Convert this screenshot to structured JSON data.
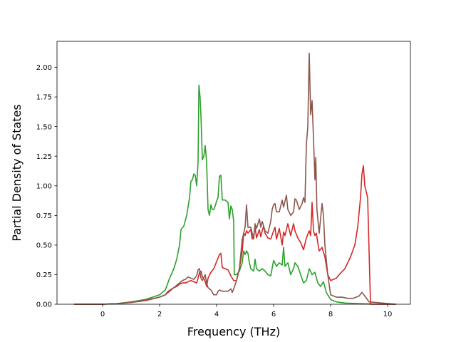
{
  "chart_data": {
    "type": "line",
    "title": "",
    "xlabel": "Frequency (THz)",
    "ylabel": "Partial Density of States",
    "xlim": [
      -1.6,
      10.8
    ],
    "ylim": [
      0.0,
      2.22
    ],
    "xticks": [
      0,
      2,
      4,
      6,
      8,
      10
    ],
    "xtick_labels": [
      "0",
      "2",
      "4",
      "6",
      "8",
      "10"
    ],
    "yticks": [
      0.0,
      0.25,
      0.5,
      0.75,
      1.0,
      1.25,
      1.5,
      1.75,
      2.0
    ],
    "ytick_labels": [
      "0.00",
      "0.25",
      "0.50",
      "0.75",
      "1.00",
      "1.25",
      "1.50",
      "1.75",
      "2.00"
    ],
    "grid": false,
    "legend": "none",
    "series": [
      {
        "color": "#2ca02c",
        "points": [
          [
            -1.0,
            0.0
          ],
          [
            0.0,
            0.0
          ],
          [
            0.5,
            0.005
          ],
          [
            1.0,
            0.02
          ],
          [
            1.5,
            0.04
          ],
          [
            2.0,
            0.08
          ],
          [
            2.2,
            0.12
          ],
          [
            2.35,
            0.22
          ],
          [
            2.5,
            0.3
          ],
          [
            2.6,
            0.38
          ],
          [
            2.7,
            0.5
          ],
          [
            2.75,
            0.63
          ],
          [
            2.85,
            0.66
          ],
          [
            2.95,
            0.75
          ],
          [
            3.05,
            0.9
          ],
          [
            3.1,
            1.04
          ],
          [
            3.15,
            1.05
          ],
          [
            3.2,
            1.1
          ],
          [
            3.25,
            1.09
          ],
          [
            3.3,
            1.0
          ],
          [
            3.35,
            1.2
          ],
          [
            3.38,
            1.85
          ],
          [
            3.42,
            1.75
          ],
          [
            3.45,
            1.6
          ],
          [
            3.5,
            1.22
          ],
          [
            3.55,
            1.25
          ],
          [
            3.6,
            1.34
          ],
          [
            3.65,
            1.2
          ],
          [
            3.7,
            0.8
          ],
          [
            3.75,
            0.75
          ],
          [
            3.8,
            0.84
          ],
          [
            3.85,
            0.8
          ],
          [
            3.9,
            0.8
          ],
          [
            3.95,
            0.83
          ],
          [
            4.0,
            0.87
          ],
          [
            4.05,
            0.9
          ],
          [
            4.1,
            1.08
          ],
          [
            4.15,
            1.09
          ],
          [
            4.2,
            0.88
          ],
          [
            4.3,
            0.88
          ],
          [
            4.4,
            0.86
          ],
          [
            4.45,
            0.72
          ],
          [
            4.5,
            0.83
          ],
          [
            4.55,
            0.8
          ],
          [
            4.6,
            0.7
          ],
          [
            4.62,
            0.25
          ],
          [
            4.7,
            0.25
          ],
          [
            4.8,
            0.28
          ],
          [
            4.9,
            0.35
          ],
          [
            4.95,
            0.45
          ],
          [
            5.0,
            0.42
          ],
          [
            5.05,
            0.45
          ],
          [
            5.1,
            0.43
          ],
          [
            5.15,
            0.35
          ],
          [
            5.2,
            0.3
          ],
          [
            5.3,
            0.28
          ],
          [
            5.35,
            0.38
          ],
          [
            5.4,
            0.3
          ],
          [
            5.5,
            0.28
          ],
          [
            5.6,
            0.3
          ],
          [
            5.7,
            0.28
          ],
          [
            5.8,
            0.25
          ],
          [
            5.9,
            0.24
          ],
          [
            6.0,
            0.37
          ],
          [
            6.1,
            0.32
          ],
          [
            6.2,
            0.35
          ],
          [
            6.3,
            0.33
          ],
          [
            6.35,
            0.48
          ],
          [
            6.4,
            0.32
          ],
          [
            6.5,
            0.35
          ],
          [
            6.6,
            0.25
          ],
          [
            6.7,
            0.3
          ],
          [
            6.75,
            0.35
          ],
          [
            6.85,
            0.32
          ],
          [
            6.95,
            0.25
          ],
          [
            7.05,
            0.18
          ],
          [
            7.15,
            0.2
          ],
          [
            7.25,
            0.3
          ],
          [
            7.35,
            0.25
          ],
          [
            7.45,
            0.27
          ],
          [
            7.55,
            0.18
          ],
          [
            7.65,
            0.15
          ],
          [
            7.75,
            0.19
          ],
          [
            7.85,
            0.1
          ],
          [
            8.0,
            0.04
          ],
          [
            8.2,
            0.02
          ],
          [
            8.5,
            0.01
          ],
          [
            9.0,
            0.005
          ],
          [
            9.5,
            0.002
          ],
          [
            10.3,
            0.0
          ]
        ]
      },
      {
        "color": "#d62728",
        "points": [
          [
            -1.0,
            0.0
          ],
          [
            0.0,
            0.0
          ],
          [
            0.5,
            0.005
          ],
          [
            1.0,
            0.015
          ],
          [
            1.5,
            0.03
          ],
          [
            2.0,
            0.06
          ],
          [
            2.2,
            0.08
          ],
          [
            2.3,
            0.1
          ],
          [
            2.5,
            0.14
          ],
          [
            2.6,
            0.15
          ],
          [
            2.7,
            0.17
          ],
          [
            2.8,
            0.18
          ],
          [
            2.9,
            0.18
          ],
          [
            3.0,
            0.19
          ],
          [
            3.1,
            0.2
          ],
          [
            3.2,
            0.19
          ],
          [
            3.3,
            0.18
          ],
          [
            3.35,
            0.22
          ],
          [
            3.4,
            0.27
          ],
          [
            3.45,
            0.28
          ],
          [
            3.5,
            0.23
          ],
          [
            3.55,
            0.22
          ],
          [
            3.6,
            0.19
          ],
          [
            3.65,
            0.15
          ],
          [
            3.7,
            0.22
          ],
          [
            3.8,
            0.27
          ],
          [
            3.9,
            0.3
          ],
          [
            4.0,
            0.36
          ],
          [
            4.1,
            0.42
          ],
          [
            4.15,
            0.43
          ],
          [
            4.2,
            0.31
          ],
          [
            4.3,
            0.3
          ],
          [
            4.4,
            0.29
          ],
          [
            4.5,
            0.24
          ],
          [
            4.6,
            0.2
          ],
          [
            4.7,
            0.2
          ],
          [
            4.8,
            0.3
          ],
          [
            4.9,
            0.45
          ],
          [
            4.95,
            0.6
          ],
          [
            5.0,
            0.58
          ],
          [
            5.05,
            0.62
          ],
          [
            5.1,
            0.6
          ],
          [
            5.2,
            0.63
          ],
          [
            5.25,
            0.55
          ],
          [
            5.3,
            0.58
          ],
          [
            5.35,
            0.65
          ],
          [
            5.4,
            0.56
          ],
          [
            5.5,
            0.63
          ],
          [
            5.55,
            0.57
          ],
          [
            5.6,
            0.62
          ],
          [
            5.65,
            0.66
          ],
          [
            5.7,
            0.6
          ],
          [
            5.8,
            0.56
          ],
          [
            5.9,
            0.55
          ],
          [
            6.0,
            0.62
          ],
          [
            6.05,
            0.65
          ],
          [
            6.1,
            0.55
          ],
          [
            6.2,
            0.64
          ],
          [
            6.3,
            0.5
          ],
          [
            6.35,
            0.61
          ],
          [
            6.4,
            0.58
          ],
          [
            6.5,
            0.68
          ],
          [
            6.6,
            0.58
          ],
          [
            6.7,
            0.68
          ],
          [
            6.75,
            0.62
          ],
          [
            6.85,
            0.56
          ],
          [
            6.95,
            0.52
          ],
          [
            7.05,
            0.46
          ],
          [
            7.15,
            0.56
          ],
          [
            7.25,
            0.62
          ],
          [
            7.3,
            0.58
          ],
          [
            7.35,
            0.86
          ],
          [
            7.4,
            0.62
          ],
          [
            7.45,
            0.58
          ],
          [
            7.5,
            0.6
          ],
          [
            7.55,
            0.52
          ],
          [
            7.6,
            0.45
          ],
          [
            7.7,
            0.48
          ],
          [
            7.8,
            0.4
          ],
          [
            7.9,
            0.25
          ],
          [
            8.0,
            0.2
          ],
          [
            8.1,
            0.21
          ],
          [
            8.2,
            0.22
          ],
          [
            8.3,
            0.25
          ],
          [
            8.5,
            0.3
          ],
          [
            8.7,
            0.4
          ],
          [
            8.85,
            0.5
          ],
          [
            8.95,
            0.65
          ],
          [
            9.05,
            0.9
          ],
          [
            9.1,
            1.1
          ],
          [
            9.15,
            1.17
          ],
          [
            9.2,
            1.0
          ],
          [
            9.3,
            0.9
          ],
          [
            9.4,
            0.0
          ],
          [
            10.3,
            0.0
          ]
        ]
      },
      {
        "color": "#8c564b",
        "points": [
          [
            -1.0,
            0.0
          ],
          [
            0.0,
            0.0
          ],
          [
            0.5,
            0.005
          ],
          [
            1.0,
            0.015
          ],
          [
            1.5,
            0.035
          ],
          [
            2.0,
            0.06
          ],
          [
            2.2,
            0.08
          ],
          [
            2.3,
            0.11
          ],
          [
            2.5,
            0.14
          ],
          [
            2.6,
            0.16
          ],
          [
            2.7,
            0.18
          ],
          [
            2.8,
            0.2
          ],
          [
            2.9,
            0.21
          ],
          [
            3.0,
            0.23
          ],
          [
            3.1,
            0.22
          ],
          [
            3.2,
            0.21
          ],
          [
            3.3,
            0.24
          ],
          [
            3.35,
            0.29
          ],
          [
            3.4,
            0.3
          ],
          [
            3.45,
            0.22
          ],
          [
            3.5,
            0.2
          ],
          [
            3.6,
            0.25
          ],
          [
            3.65,
            0.18
          ],
          [
            3.7,
            0.14
          ],
          [
            3.8,
            0.12
          ],
          [
            3.9,
            0.08
          ],
          [
            4.0,
            0.08
          ],
          [
            4.05,
            0.11
          ],
          [
            4.1,
            0.12
          ],
          [
            4.2,
            0.11
          ],
          [
            4.4,
            0.11
          ],
          [
            4.5,
            0.13
          ],
          [
            4.55,
            0.1
          ],
          [
            4.6,
            0.13
          ],
          [
            4.7,
            0.2
          ],
          [
            4.8,
            0.3
          ],
          [
            4.9,
            0.55
          ],
          [
            5.0,
            0.65
          ],
          [
            5.05,
            0.84
          ],
          [
            5.1,
            0.65
          ],
          [
            5.2,
            0.65
          ],
          [
            5.25,
            0.6
          ],
          [
            5.3,
            0.55
          ],
          [
            5.35,
            0.68
          ],
          [
            5.4,
            0.64
          ],
          [
            5.5,
            0.72
          ],
          [
            5.55,
            0.65
          ],
          [
            5.6,
            0.7
          ],
          [
            5.7,
            0.62
          ],
          [
            5.8,
            0.6
          ],
          [
            5.9,
            0.7
          ],
          [
            5.95,
            0.8
          ],
          [
            6.0,
            0.84
          ],
          [
            6.05,
            0.85
          ],
          [
            6.1,
            0.78
          ],
          [
            6.2,
            0.78
          ],
          [
            6.3,
            0.88
          ],
          [
            6.35,
            0.82
          ],
          [
            6.45,
            0.92
          ],
          [
            6.5,
            0.8
          ],
          [
            6.6,
            0.75
          ],
          [
            6.7,
            0.78
          ],
          [
            6.75,
            0.89
          ],
          [
            6.8,
            0.88
          ],
          [
            6.9,
            0.8
          ],
          [
            7.0,
            0.85
          ],
          [
            7.05,
            0.9
          ],
          [
            7.1,
            0.86
          ],
          [
            7.15,
            1.35
          ],
          [
            7.2,
            1.5
          ],
          [
            7.25,
            2.12
          ],
          [
            7.3,
            1.6
          ],
          [
            7.35,
            1.72
          ],
          [
            7.4,
            1.4
          ],
          [
            7.45,
            1.05
          ],
          [
            7.48,
            1.24
          ],
          [
            7.52,
            0.8
          ],
          [
            7.6,
            0.6
          ],
          [
            7.7,
            0.85
          ],
          [
            7.75,
            0.75
          ],
          [
            7.8,
            0.5
          ],
          [
            7.9,
            0.25
          ],
          [
            8.0,
            0.08
          ],
          [
            8.2,
            0.06
          ],
          [
            8.4,
            0.06
          ],
          [
            8.6,
            0.05
          ],
          [
            8.8,
            0.05
          ],
          [
            9.0,
            0.07
          ],
          [
            9.1,
            0.1
          ],
          [
            9.2,
            0.07
          ],
          [
            9.35,
            0.02
          ],
          [
            10.3,
            0.0
          ]
        ]
      }
    ]
  }
}
